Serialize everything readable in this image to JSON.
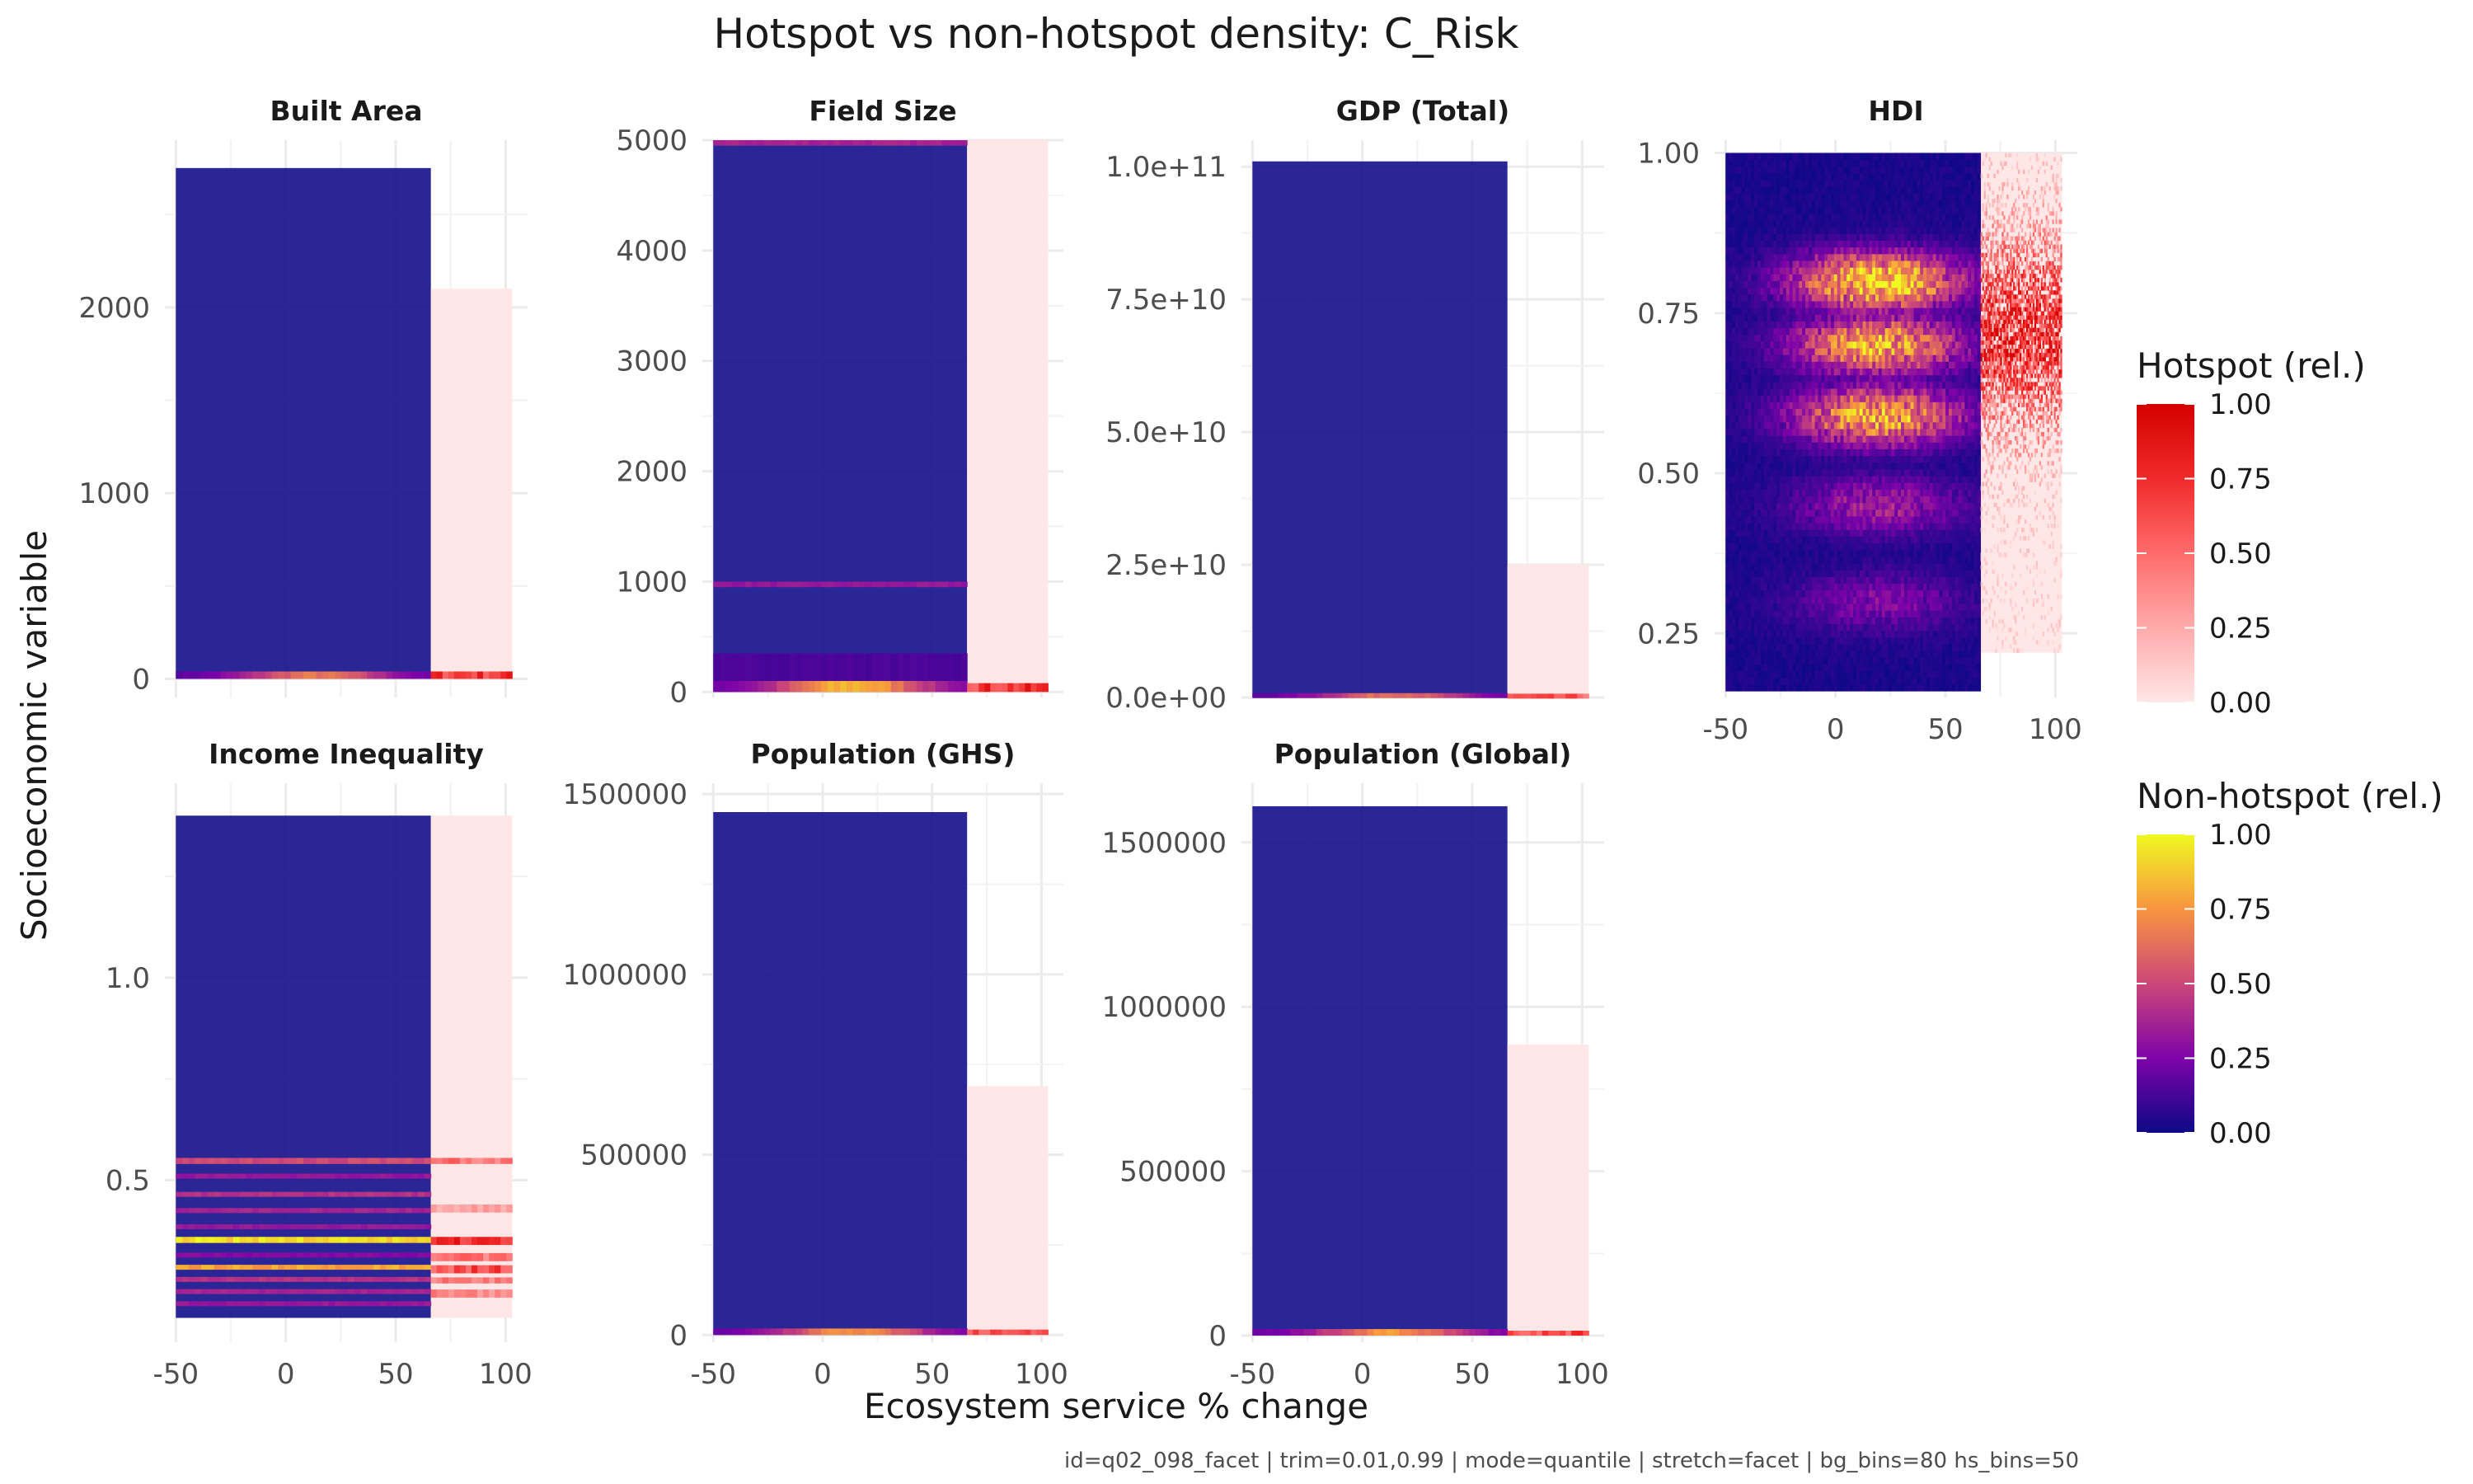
{
  "chart_data": {
    "type": "heatmap",
    "title": "Hotspot vs non-hotspot density: C_Risk",
    "xlabel": "Ecosystem service % change",
    "ylabel": "Socioeconomic variable",
    "caption": "id=q02_098_facet | trim=0.01,0.99 | mode=quantile | stretch=facet | bg_bins=80 hs_bins=50",
    "grid": true,
    "xlim": [
      -55,
      110
    ],
    "x_ticks": [
      -50,
      0,
      50,
      100
    ],
    "x_tick_labels": [
      "-50",
      "0",
      "50",
      "100"
    ],
    "legends": [
      {
        "name": "hotspot",
        "title": "Hotspot (rel.)",
        "ticks": [
          "0.00",
          "0.25",
          "0.50",
          "0.75",
          "1.00"
        ],
        "colors": [
          "#ffe7e7",
          "#ffaaaa",
          "#ff6b6b",
          "#f02a2a",
          "#d40000"
        ]
      },
      {
        "name": "nonhotspot",
        "title": "Non-hotspot (rel.)",
        "ticks": [
          "0.00",
          "0.25",
          "0.50",
          "0.75",
          "1.00"
        ],
        "colors": [
          "#0d0887",
          "#7e03a8",
          "#cc4778",
          "#f89540",
          "#f0f921"
        ]
      }
    ],
    "panels": [
      {
        "name": "Built Area",
        "ylim": [
          -100,
          2900
        ],
        "y_ticks": [
          0,
          1000,
          2000
        ],
        "y_tick_labels": [
          "0",
          "1000",
          "2000"
        ],
        "background_region": {
          "x": [
            -50,
            66
          ],
          "y": [
            0,
            2750
          ],
          "density": 0
        },
        "hotspot_region": {
          "x": [
            66,
            103
          ],
          "y": [
            0,
            2100
          ],
          "density": 0
        },
        "bands": [
          {
            "layer": "nonhotspot",
            "x": [
              -50,
              66
            ],
            "y": [
              0,
              40
            ],
            "density": 0.7,
            "profile": "center"
          },
          {
            "layer": "hotspot",
            "x": [
              66,
              103
            ],
            "y": [
              0,
              40
            ],
            "density": 0.9
          }
        ],
        "speckle": null
      },
      {
        "name": "Field Size",
        "ylim": [
          -50,
          5000
        ],
        "y_ticks": [
          0,
          1000,
          2000,
          3000,
          4000,
          5000
        ],
        "y_tick_labels": [
          "0",
          "1000",
          "2000",
          "3000",
          "4000",
          "5000"
        ],
        "background_region": {
          "x": [
            -50,
            66
          ],
          "y": [
            0,
            5000
          ],
          "density": 0
        },
        "hotspot_region": {
          "x": [
            66,
            103
          ],
          "y": [
            0,
            5000
          ],
          "density": 0
        },
        "bands": [
          {
            "layer": "nonhotspot",
            "x": [
              -50,
              66
            ],
            "y": [
              0,
              100
            ],
            "density": 0.9,
            "profile": "center"
          },
          {
            "layer": "nonhotspot",
            "x": [
              -50,
              66
            ],
            "y": [
              100,
              350
            ],
            "density": 0.15,
            "profile": "flat"
          },
          {
            "layer": "nonhotspot",
            "x": [
              -50,
              66
            ],
            "y": [
              950,
              1000
            ],
            "density": 0.35,
            "profile": "flat"
          },
          {
            "layer": "nonhotspot",
            "x": [
              -50,
              66
            ],
            "y": [
              4950,
              5000
            ],
            "density": 0.4,
            "profile": "flat"
          },
          {
            "layer": "hotspot",
            "x": [
              66,
              103
            ],
            "y": [
              0,
              80
            ],
            "density": 0.9
          }
        ],
        "speckle": null
      },
      {
        "name": "GDP (Total)",
        "ylim": [
          0,
          105000000000
        ],
        "y_ticks": [
          0,
          25000000000,
          50000000000,
          75000000000,
          100000000000
        ],
        "y_tick_labels": [
          "0.0e+00",
          "2.5e+10",
          "5.0e+10",
          "7.5e+10",
          "1.0e+11"
        ],
        "background_region": {
          "x": [
            -50,
            66
          ],
          "y": [
            0,
            101000000000
          ],
          "density": 0
        },
        "hotspot_region": {
          "x": [
            66,
            103
          ],
          "y": [
            0,
            25000000000
          ],
          "density": 0
        },
        "bands": [
          {
            "layer": "nonhotspot",
            "x": [
              -50,
              66
            ],
            "y": [
              0,
              700000000
            ],
            "density": 0.7,
            "profile": "center"
          },
          {
            "layer": "hotspot",
            "x": [
              66,
              103
            ],
            "y": [
              0,
              500000000
            ],
            "density": 0.7
          }
        ],
        "speckle": null
      },
      {
        "name": "HDI",
        "ylim": [
          0.15,
          1.02
        ],
        "y_ticks": [
          0.25,
          0.5,
          0.75,
          1.0
        ],
        "y_tick_labels": [
          "0.25",
          "0.50",
          "0.75",
          "1.00"
        ],
        "background_region": {
          "x": [
            -50,
            66
          ],
          "y": [
            0.16,
            1.0
          ],
          "density": 0.05
        },
        "hotspot_region": {
          "x": [
            66,
            103
          ],
          "y": [
            0.22,
            1.0
          ],
          "density": 0
        },
        "bands": [],
        "speckle": {
          "x": [
            -50,
            66
          ],
          "y": [
            0.16,
            1.0
          ],
          "hotspot_x": [
            66,
            103
          ],
          "hotspot_y": [
            0.22,
            1.0
          ],
          "peaks": [
            0.8,
            0.7,
            0.59,
            0.45,
            0.3
          ]
        }
      },
      {
        "name": "Income Inequality",
        "ylim": [
          0.1,
          1.48
        ],
        "y_ticks": [
          0.5,
          1.0
        ],
        "y_tick_labels": [
          "0.5",
          "1.0"
        ],
        "background_region": {
          "x": [
            -50,
            66
          ],
          "y": [
            0.16,
            1.4
          ],
          "density": 0
        },
        "hotspot_region": {
          "x": [
            66,
            103
          ],
          "y": [
            0.16,
            1.4
          ],
          "density": 0
        },
        "bands": [
          {
            "layer": "nonhotspot",
            "x": [
              -50,
              66
            ],
            "y": [
              0.54,
              0.555
            ],
            "density": 0.55,
            "profile": "flat"
          },
          {
            "layer": "nonhotspot",
            "x": [
              -50,
              66
            ],
            "y": [
              0.505,
              0.515
            ],
            "density": 0.35,
            "profile": "flat"
          },
          {
            "layer": "nonhotspot",
            "x": [
              -50,
              66
            ],
            "y": [
              0.46,
              0.47
            ],
            "density": 0.45,
            "profile": "flat"
          },
          {
            "layer": "nonhotspot",
            "x": [
              -50,
              66
            ],
            "y": [
              0.42,
              0.43
            ],
            "density": 0.4,
            "profile": "flat"
          },
          {
            "layer": "nonhotspot",
            "x": [
              -50,
              66
            ],
            "y": [
              0.38,
              0.39
            ],
            "density": 0.35,
            "profile": "flat"
          },
          {
            "layer": "nonhotspot",
            "x": [
              -50,
              66
            ],
            "y": [
              0.345,
              0.36
            ],
            "density": 1.0,
            "profile": "flat"
          },
          {
            "layer": "nonhotspot",
            "x": [
              -50,
              66
            ],
            "y": [
              0.31,
              0.32
            ],
            "density": 0.3,
            "profile": "flat"
          },
          {
            "layer": "nonhotspot",
            "x": [
              -50,
              66
            ],
            "y": [
              0.28,
              0.29
            ],
            "density": 0.85,
            "profile": "flat"
          },
          {
            "layer": "nonhotspot",
            "x": [
              -50,
              66
            ],
            "y": [
              0.25,
              0.26
            ],
            "density": 0.45,
            "profile": "flat"
          },
          {
            "layer": "nonhotspot",
            "x": [
              -50,
              66
            ],
            "y": [
              0.22,
              0.23
            ],
            "density": 0.4,
            "profile": "flat"
          },
          {
            "layer": "nonhotspot",
            "x": [
              -50,
              66
            ],
            "y": [
              0.19,
              0.2
            ],
            "density": 0.35,
            "profile": "flat"
          },
          {
            "layer": "hotspot",
            "x": [
              66,
              103
            ],
            "y": [
              0.54,
              0.555
            ],
            "density": 0.6
          },
          {
            "layer": "hotspot",
            "x": [
              66,
              103
            ],
            "y": [
              0.42,
              0.44
            ],
            "density": 0.35
          },
          {
            "layer": "hotspot",
            "x": [
              66,
              103
            ],
            "y": [
              0.34,
              0.36
            ],
            "density": 0.95
          },
          {
            "layer": "hotspot",
            "x": [
              66,
              103
            ],
            "y": [
              0.3,
              0.32
            ],
            "density": 0.6
          },
          {
            "layer": "hotspot",
            "x": [
              66,
              103
            ],
            "y": [
              0.27,
              0.29
            ],
            "density": 0.8
          },
          {
            "layer": "hotspot",
            "x": [
              66,
              103
            ],
            "y": [
              0.245,
              0.26
            ],
            "density": 0.55
          },
          {
            "layer": "hotspot",
            "x": [
              66,
              103
            ],
            "y": [
              0.21,
              0.23
            ],
            "density": 0.5
          }
        ],
        "speckle": null
      },
      {
        "name": "Population (GHS)",
        "ylim": [
          -20000,
          1530000
        ],
        "y_ticks": [
          0,
          500000,
          1000000,
          1500000
        ],
        "y_tick_labels": [
          "0",
          "500000",
          "1000000",
          "1500000"
        ],
        "background_region": {
          "x": [
            -50,
            66
          ],
          "y": [
            0,
            1450000
          ],
          "density": 0
        },
        "hotspot_region": {
          "x": [
            66,
            103
          ],
          "y": [
            0,
            690000
          ],
          "density": 0
        },
        "bands": [
          {
            "layer": "nonhotspot",
            "x": [
              -50,
              66
            ],
            "y": [
              0,
              18000
            ],
            "density": 0.8,
            "profile": "center"
          },
          {
            "layer": "hotspot",
            "x": [
              66,
              103
            ],
            "y": [
              0,
              15000
            ],
            "density": 0.8
          }
        ],
        "speckle": null
      },
      {
        "name": "Population (Global)",
        "ylim": [
          -20000,
          1680000
        ],
        "y_ticks": [
          0,
          500000,
          1000000,
          1500000
        ],
        "y_tick_labels": [
          "0",
          "500000",
          "1000000",
          "1500000"
        ],
        "background_region": {
          "x": [
            -50,
            66
          ],
          "y": [
            0,
            1610000
          ],
          "density": 0
        },
        "hotspot_region": {
          "x": [
            66,
            103
          ],
          "y": [
            0,
            885000
          ],
          "density": 0
        },
        "bands": [
          {
            "layer": "nonhotspot",
            "x": [
              -50,
              66
            ],
            "y": [
              0,
              20000
            ],
            "density": 0.8,
            "profile": "center"
          },
          {
            "layer": "hotspot",
            "x": [
              66,
              103
            ],
            "y": [
              0,
              15000
            ],
            "density": 0.8
          }
        ],
        "speckle": null
      }
    ]
  }
}
